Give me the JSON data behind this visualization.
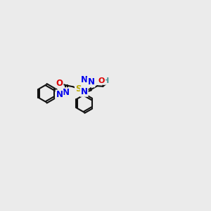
{
  "background_color": "#ebebeb",
  "fig_size": [
    3.0,
    3.0
  ],
  "dpi": 100,
  "atom_colors": {
    "N": "#0000ee",
    "O": "#dd0000",
    "S": "#bbaa00",
    "H_color": "#4a9a9a"
  },
  "bond_color": "#111111",
  "bond_width": 1.5,
  "font_size": 8.5
}
